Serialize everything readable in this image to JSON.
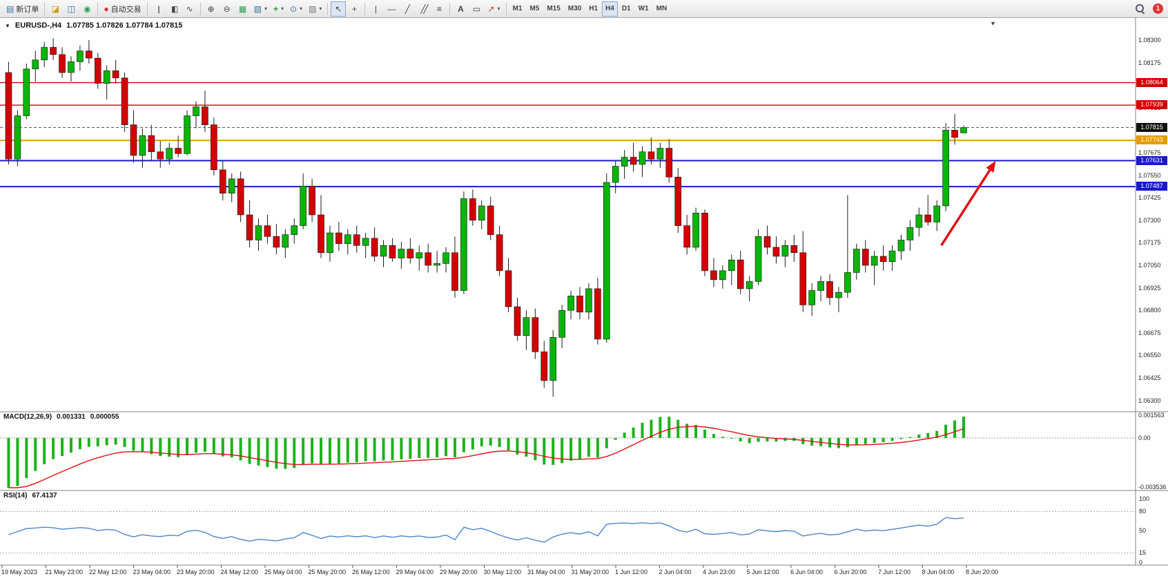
{
  "toolbar": {
    "new_order_label": "新订单",
    "autotrading_label": "自动交易",
    "timeframes": [
      "M1",
      "M5",
      "M15",
      "M30",
      "H1",
      "H4",
      "D1",
      "W1",
      "MN"
    ],
    "active_timeframe": "H4",
    "notification_count": "1"
  },
  "icons": {
    "collapse": "▼",
    "new_order": "▤",
    "charts_profile": "◪",
    "market_watch": "◫",
    "navigator": "◉",
    "autotrading_status": "●",
    "bars_chart": "|||",
    "candles_chart": "▮▯",
    "line_chart": "∿",
    "zoom_in": "⊕",
    "zoom_out": "⊖",
    "tile_windows": "▦",
    "new_chart": "▧",
    "indicators": "+",
    "periods": "⊙",
    "templates": "▨",
    "cursor": "↖",
    "crosshair": "+",
    "vline": "|",
    "hline": "—",
    "trendline": "╱",
    "channel": "╱╱",
    "fibonacci": "≡",
    "text": "A",
    "text_label": "▭",
    "arrows": "↗",
    "dropdown": "▾",
    "shift_marker": "▼"
  },
  "chart": {
    "symbol_period": "EURUSD-,H4",
    "ohlc_text": "1.07785 1.07826 1.07784 1.07815",
    "price_ticks": [
      "1.08300",
      "1.08175",
      "1.08050",
      "1.07925",
      "1.07800",
      "1.07675",
      "1.07550",
      "1.07425",
      "1.07300",
      "1.07175",
      "1.07050",
      "1.06925",
      "1.06800",
      "1.06675",
      "1.06550",
      "1.06425",
      "1.06300"
    ],
    "hlines": [
      {
        "price": 1.08064,
        "label": "1.08064",
        "color": "#d40000",
        "width": 1.4
      },
      {
        "price": 1.07939,
        "label": "1.07939",
        "color": "#d40000",
        "width": 1.4
      },
      {
        "price": 1.07743,
        "label": "1.07743",
        "color": "#e89b00",
        "width": 2
      },
      {
        "price": 1.07631,
        "label": "1.07631",
        "color": "#1919cc",
        "width": 2
      },
      {
        "price": 1.07487,
        "label": "1.07487",
        "color": "#1919cc",
        "width": 2
      }
    ],
    "current_price": {
      "price": 1.07815,
      "label": "1.07815",
      "box_color": "#111111"
    },
    "arrow": {
      "from_bar": 104.5,
      "from_price": 1.0716,
      "to_bar": 110.6,
      "to_price": 1.0763,
      "color": "#e01010"
    },
    "time_labels": [
      "19 May 2023",
      "21 May 23:00",
      "22 May 12:00",
      "23 May 04:00",
      "23 May 20:00",
      "24 May 12:00",
      "25 May 04:00",
      "25 May 20:00",
      "26 May 12:00",
      "29 May 04:00",
      "29 May 20:00",
      "30 May 12:00",
      "31 May 04:00",
      "31 May 20:00",
      "1 Jun 12:00",
      "2 Jun 04:00",
      "4 Jun 23:00",
      "5 Jun 12:00",
      "6 Jun 04:00",
      "6 Jun 20:00",
      "7 Jun 12:00",
      "8 Jun 04:00",
      "8 Jun 20:00"
    ]
  },
  "indicators": {
    "macd": {
      "label": "MACD(12,26,9)",
      "value_main": "0.001331",
      "value_signal": "0.000055",
      "params": {
        "fast": 12,
        "slow": 26,
        "signal": 9
      },
      "axis_labels": [
        "0.001563",
        "0.00",
        "-0.003536"
      ],
      "axis_max": 0.001563,
      "axis_min": -0.003536,
      "histogram_color": "#1db21d",
      "signal_color": "#e01010"
    },
    "rsi": {
      "label": "RSI(14)",
      "value": "67.4137",
      "period": 14,
      "axis_labels": [
        "100",
        "80",
        "50",
        "15",
        "0"
      ],
      "levels": [
        80,
        15
      ],
      "line_color": "#4a86c8"
    }
  },
  "chart_data": {
    "type": "candlestick",
    "symbol": "EURUSD-",
    "timeframe": "H4",
    "bull_color": "#0ab50a",
    "bear_color": "#d40000",
    "wick_color": "#1a1a1a",
    "price_range": [
      1.0626,
      1.084
    ],
    "candles_ohlc": [
      [
        1.0812,
        1.0818,
        1.0761,
        1.0764
      ],
      [
        1.0764,
        1.0791,
        1.076,
        1.0788
      ],
      [
        1.0788,
        1.0817,
        1.0786,
        1.0814
      ],
      [
        1.0814,
        1.0824,
        1.0807,
        1.0819
      ],
      [
        1.0819,
        1.0829,
        1.0815,
        1.0826
      ],
      [
        1.0826,
        1.0831,
        1.0819,
        1.0822
      ],
      [
        1.0822,
        1.0826,
        1.0809,
        1.0812
      ],
      [
        1.0812,
        1.0821,
        1.0807,
        1.0818
      ],
      [
        1.0818,
        1.0827,
        1.0813,
        1.0824
      ],
      [
        1.0824,
        1.083,
        1.0817,
        1.082
      ],
      [
        1.082,
        1.0823,
        1.0803,
        1.0806
      ],
      [
        1.0806,
        1.0816,
        1.0797,
        1.0813
      ],
      [
        1.0813,
        1.0819,
        1.0806,
        1.0809
      ],
      [
        1.0809,
        1.0812,
        1.0779,
        1.0783
      ],
      [
        1.0783,
        1.0791,
        1.0762,
        1.0766
      ],
      [
        1.0766,
        1.0781,
        1.0759,
        1.0777
      ],
      [
        1.0777,
        1.0783,
        1.0763,
        1.0768
      ],
      [
        1.0768,
        1.0774,
        1.0759,
        1.0764
      ],
      [
        1.0764,
        1.0773,
        1.0761,
        1.077
      ],
      [
        1.077,
        1.0777,
        1.0765,
        1.0767
      ],
      [
        1.0767,
        1.0791,
        1.0766,
        1.0788
      ],
      [
        1.0788,
        1.0796,
        1.0781,
        1.0793
      ],
      [
        1.0793,
        1.0802,
        1.0779,
        1.0783
      ],
      [
        1.0783,
        1.0787,
        1.0755,
        1.0758
      ],
      [
        1.0758,
        1.0763,
        1.0741,
        1.0745
      ],
      [
        1.0745,
        1.0756,
        1.074,
        1.0753
      ],
      [
        1.0753,
        1.0757,
        1.0729,
        1.0733
      ],
      [
        1.0733,
        1.0741,
        1.0715,
        1.0719
      ],
      [
        1.0719,
        1.0731,
        1.0713,
        1.0727
      ],
      [
        1.0727,
        1.0733,
        1.0717,
        1.0721
      ],
      [
        1.0721,
        1.0728,
        1.0711,
        1.0715
      ],
      [
        1.0715,
        1.0725,
        1.0709,
        1.0722
      ],
      [
        1.0722,
        1.0731,
        1.0717,
        1.0727
      ],
      [
        1.0727,
        1.0756,
        1.0725,
        1.0749
      ],
      [
        1.0749,
        1.0753,
        1.0729,
        1.0733
      ],
      [
        1.0733,
        1.0744,
        1.0709,
        1.0712
      ],
      [
        1.0712,
        1.0727,
        1.0707,
        1.0723
      ],
      [
        1.0723,
        1.0729,
        1.0713,
        1.0717
      ],
      [
        1.0717,
        1.0725,
        1.0711,
        1.0722
      ],
      [
        1.0722,
        1.0727,
        1.0712,
        1.0716
      ],
      [
        1.0716,
        1.0723,
        1.0709,
        1.072
      ],
      [
        1.072,
        1.0726,
        1.0707,
        1.071
      ],
      [
        1.071,
        1.0719,
        1.0704,
        1.0716
      ],
      [
        1.0716,
        1.072,
        1.0707,
        1.0709
      ],
      [
        1.0709,
        1.0718,
        1.0703,
        1.0714
      ],
      [
        1.0714,
        1.072,
        1.0706,
        1.0709
      ],
      [
        1.0709,
        1.0716,
        1.0702,
        1.0712
      ],
      [
        1.0712,
        1.0717,
        1.0701,
        1.0705
      ],
      [
        1.0705,
        1.0713,
        1.0701,
        1.0706
      ],
      [
        1.0706,
        1.0715,
        1.0701,
        1.0712
      ],
      [
        1.0712,
        1.0721,
        1.0687,
        1.0691
      ],
      [
        1.0691,
        1.0746,
        1.0689,
        1.0742
      ],
      [
        1.0742,
        1.0747,
        1.0727,
        1.073
      ],
      [
        1.073,
        1.0741,
        1.0725,
        1.0738
      ],
      [
        1.0738,
        1.0743,
        1.0719,
        1.0722
      ],
      [
        1.0722,
        1.0727,
        1.0699,
        1.0702
      ],
      [
        1.0702,
        1.0709,
        1.0679,
        1.0682
      ],
      [
        1.0682,
        1.0687,
        1.0663,
        1.0666
      ],
      [
        1.0666,
        1.068,
        1.0658,
        1.0676
      ],
      [
        1.0676,
        1.0681,
        1.0653,
        1.0657
      ],
      [
        1.0657,
        1.0663,
        1.0637,
        1.0641
      ],
      [
        1.0641,
        1.0669,
        1.0632,
        1.0665
      ],
      [
        1.0665,
        1.0683,
        1.0659,
        1.068
      ],
      [
        1.068,
        1.0691,
        1.0675,
        1.0688
      ],
      [
        1.0688,
        1.0693,
        1.0675,
        1.0679
      ],
      [
        1.0679,
        1.0695,
        1.0675,
        1.0692
      ],
      [
        1.0692,
        1.0698,
        1.0661,
        1.0664
      ],
      [
        1.0664,
        1.0756,
        1.0662,
        1.0751
      ],
      [
        1.0751,
        1.0763,
        1.0745,
        1.076
      ],
      [
        1.076,
        1.0769,
        1.0753,
        1.0765
      ],
      [
        1.0765,
        1.0773,
        1.0757,
        1.0761
      ],
      [
        1.0761,
        1.0771,
        1.0754,
        1.0768
      ],
      [
        1.0768,
        1.0776,
        1.0761,
        1.0764
      ],
      [
        1.0764,
        1.0773,
        1.0759,
        1.077
      ],
      [
        1.077,
        1.0775,
        1.0751,
        1.0754
      ],
      [
        1.0754,
        1.0759,
        1.0723,
        1.0727
      ],
      [
        1.0727,
        1.0733,
        1.0711,
        1.0715
      ],
      [
        1.0715,
        1.0737,
        1.0713,
        1.0734
      ],
      [
        1.0734,
        1.0736,
        1.0699,
        1.0702
      ],
      [
        1.0702,
        1.0709,
        1.0693,
        1.0697
      ],
      [
        1.0697,
        1.0705,
        1.0692,
        1.0702
      ],
      [
        1.0702,
        1.0711,
        1.0694,
        1.0708
      ],
      [
        1.0708,
        1.0713,
        1.0689,
        1.0692
      ],
      [
        1.0692,
        1.0699,
        1.0685,
        1.0696
      ],
      [
        1.0696,
        1.0725,
        1.0694,
        1.0721
      ],
      [
        1.0721,
        1.0727,
        1.0711,
        1.0715
      ],
      [
        1.0715,
        1.0721,
        1.0706,
        1.071
      ],
      [
        1.071,
        1.0719,
        1.0704,
        1.0716
      ],
      [
        1.0716,
        1.0722,
        1.0707,
        1.0712
      ],
      [
        1.0712,
        1.0724,
        1.0679,
        1.0683
      ],
      [
        1.0683,
        1.0695,
        1.0677,
        1.0691
      ],
      [
        1.0691,
        1.0699,
        1.0685,
        1.0696
      ],
      [
        1.0696,
        1.07,
        1.0683,
        1.0687
      ],
      [
        1.0687,
        1.0693,
        1.0679,
        1.069
      ],
      [
        1.069,
        1.0744,
        1.0687,
        1.0701
      ],
      [
        1.0701,
        1.0717,
        1.0697,
        1.0714
      ],
      [
        1.0714,
        1.0719,
        1.0701,
        1.0705
      ],
      [
        1.0705,
        1.0713,
        1.0694,
        1.071
      ],
      [
        1.071,
        1.0716,
        1.0702,
        1.0707
      ],
      [
        1.0707,
        1.0716,
        1.0702,
        1.0713
      ],
      [
        1.0713,
        1.0722,
        1.0708,
        1.0719
      ],
      [
        1.0719,
        1.073,
        1.0713,
        1.0726
      ],
      [
        1.0726,
        1.0737,
        1.0721,
        1.0733
      ],
      [
        1.0733,
        1.0744,
        1.0727,
        1.0729
      ],
      [
        1.0729,
        1.0741,
        1.0724,
        1.0738
      ],
      [
        1.0738,
        1.0784,
        1.0735,
        1.078
      ],
      [
        1.078,
        1.0789,
        1.0772,
        1.0776
      ],
      [
        1.07785,
        1.07826,
        1.07784,
        1.07815
      ]
    ]
  }
}
